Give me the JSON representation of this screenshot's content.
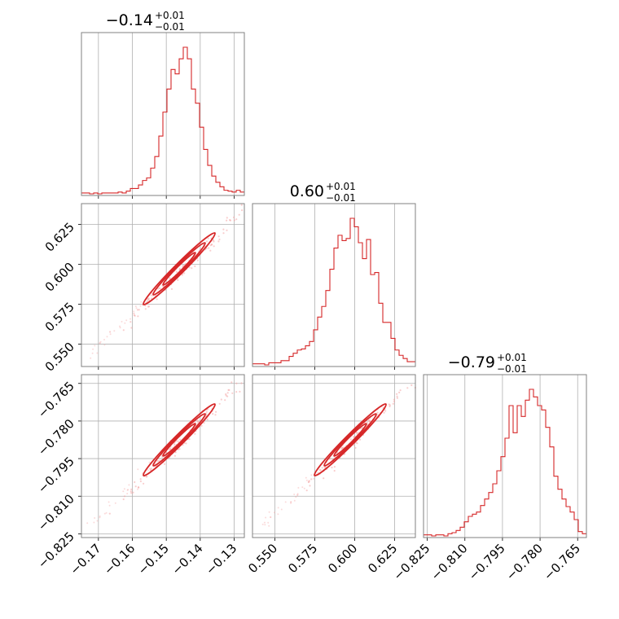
{
  "chart_data": {
    "type": "corner",
    "colors": {
      "main": "#d62728",
      "grid": "#b0b0b0",
      "spine": "#808080",
      "point": "#f4a6a6"
    },
    "grid": true,
    "parameters": [
      {
        "range": [
          -0.175,
          -0.127
        ],
        "ticks": [
          -0.17,
          -0.16,
          -0.15,
          -0.14,
          -0.13
        ],
        "tick_labels": [
          "−0.17",
          "−0.16",
          "−0.15",
          "−0.14",
          "−0.13"
        ],
        "title": {
          "median": "−0.14",
          "upper": "+0.01",
          "lower": "−0.01"
        }
      },
      {
        "range": [
          0.536,
          0.638
        ],
        "ticks": [
          0.55,
          0.575,
          0.6,
          0.625
        ],
        "tick_labels": [
          "0.550",
          "0.575",
          "0.600",
          "0.625"
        ],
        "title": {
          "median": "0.60",
          "upper": "+0.01",
          "lower": "−0.01"
        }
      },
      {
        "range": [
          -0.8265,
          -0.7615
        ],
        "ticks": [
          -0.825,
          -0.81,
          -0.795,
          -0.78,
          -0.765
        ],
        "tick_labels": [
          "−0.825",
          "−0.810",
          "−0.795",
          "−0.780",
          "−0.765"
        ],
        "title": {
          "median": "−0.79",
          "upper": "+0.01",
          "lower": "−0.01"
        }
      }
    ],
    "histograms": [
      {
        "param": 0,
        "bins": 40,
        "counts": [
          1,
          1,
          0,
          1,
          0,
          1,
          1,
          1,
          1,
          2,
          1,
          3,
          6,
          6,
          10,
          15,
          18,
          29,
          42,
          65,
          92,
          118,
          140,
          135,
          152,
          165,
          152,
          118,
          102,
          75,
          50,
          32,
          20,
          13,
          8,
          4,
          3,
          2,
          4,
          2
        ]
      },
      {
        "param": 1,
        "bins": 40,
        "counts": [
          1,
          1,
          1,
          0,
          2,
          2,
          2,
          4,
          4,
          8,
          11,
          14,
          15,
          18,
          22,
          33,
          45,
          55,
          70,
          90,
          110,
          122,
          117,
          119,
          138,
          130,
          115,
          100,
          118,
          85,
          87,
          58,
          40,
          40,
          25,
          14,
          9,
          6,
          3,
          3
        ]
      },
      {
        "param": 2,
        "bins": 40,
        "counts": [
          1,
          1,
          0,
          1,
          1,
          0,
          2,
          3,
          5,
          8,
          13,
          18,
          20,
          22,
          28,
          34,
          40,
          48,
          60,
          73,
          90,
          120,
          95,
          120,
          110,
          125,
          135,
          128,
          120,
          116,
          100,
          82,
          55,
          43,
          34,
          27,
          22,
          15,
          4,
          2
        ]
      }
    ],
    "scatter_panels": [
      {
        "x_param": 0,
        "y_param": 1,
        "x_label_visible": false,
        "y_label_visible": true
      },
      {
        "x_param": 0,
        "y_param": 2,
        "x_label_visible": true,
        "y_label_visible": true
      },
      {
        "x_param": 1,
        "y_param": 2,
        "x_label_visible": true,
        "y_label_visible": false
      }
    ]
  }
}
